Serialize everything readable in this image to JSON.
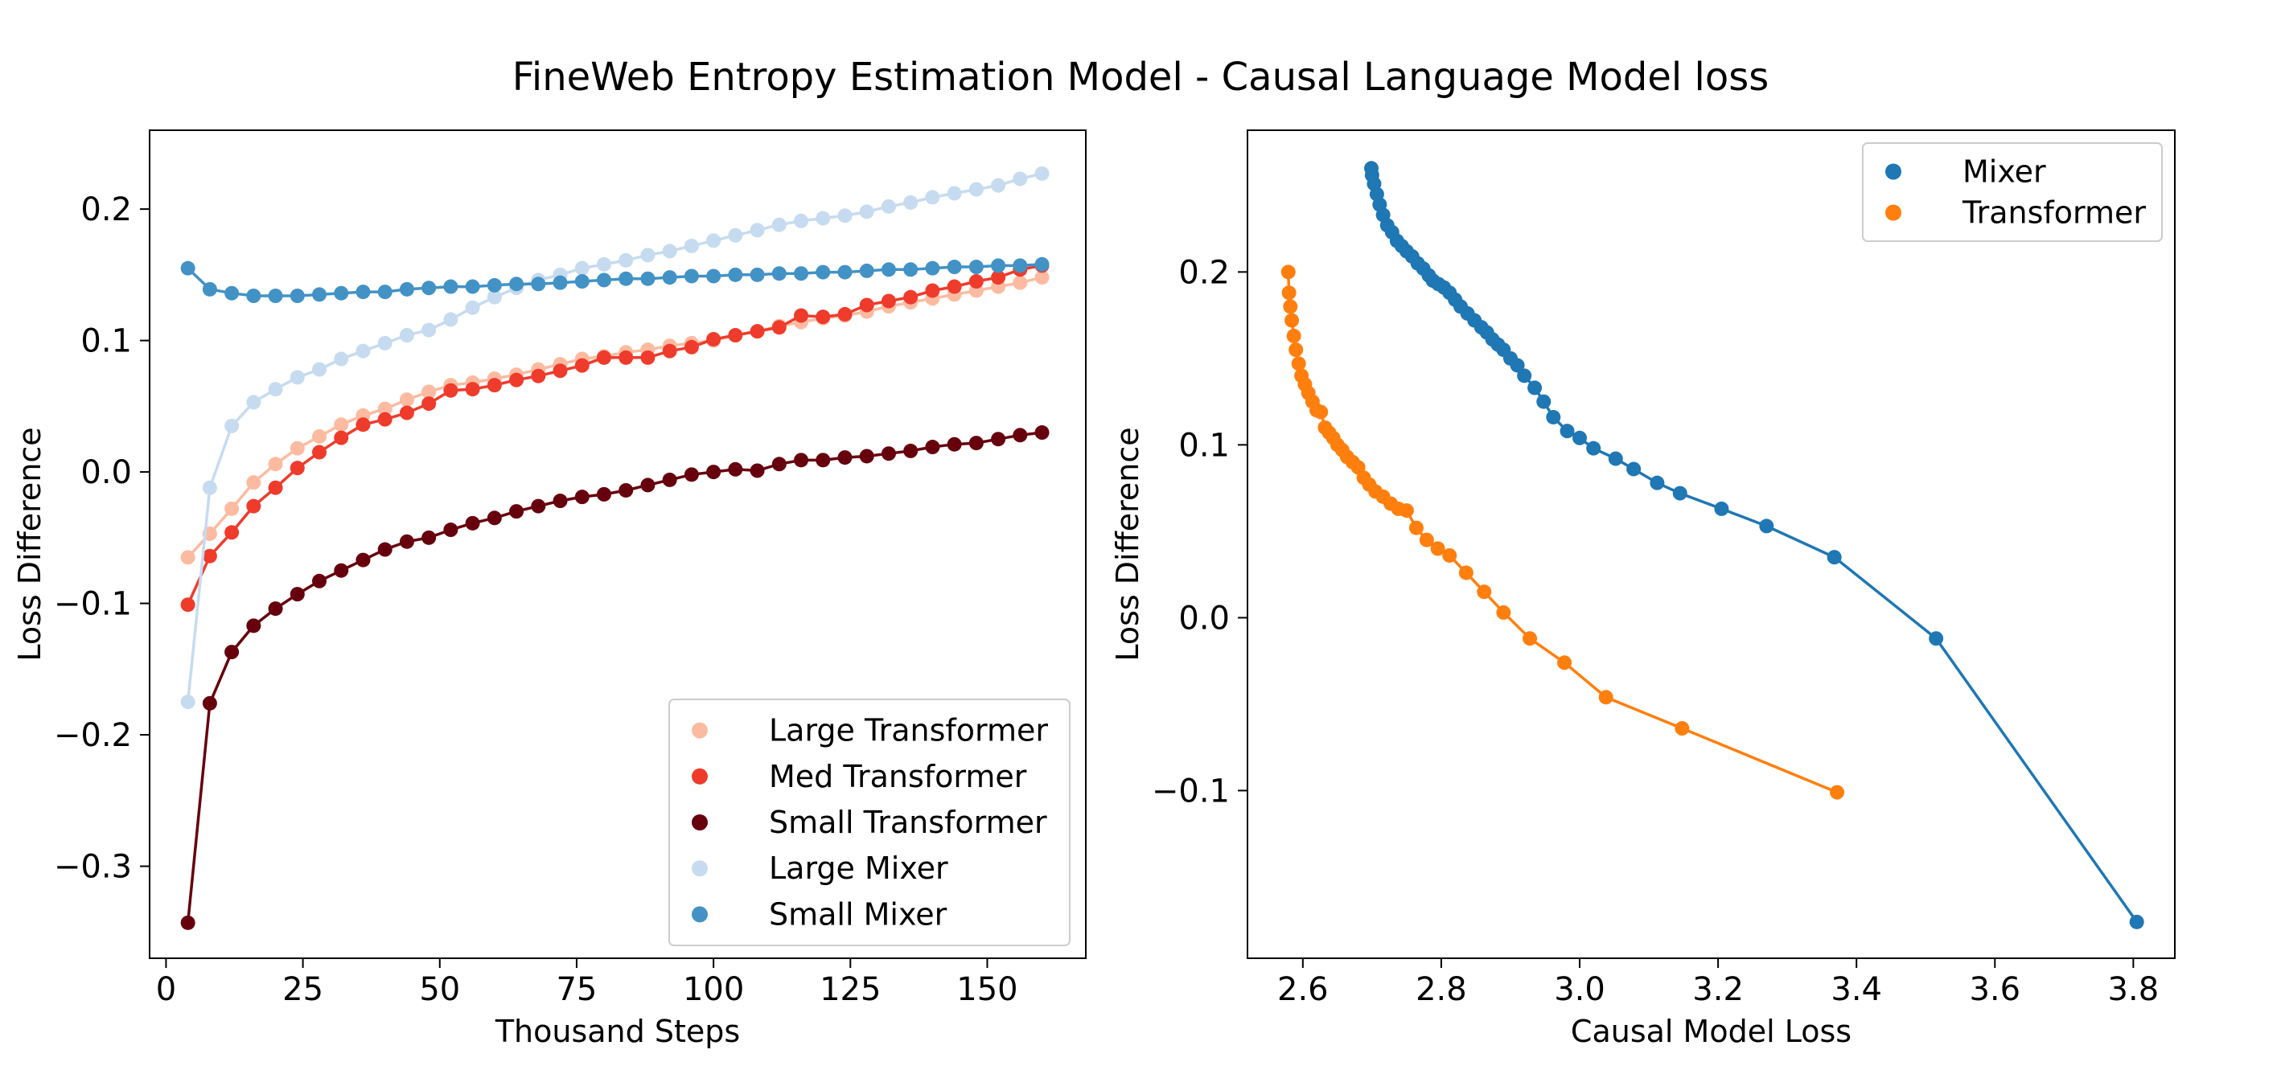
{
  "figure": {
    "title": "FineWeb Entropy Estimation Model - Causal Language Model loss"
  },
  "chart_data": [
    {
      "type": "line",
      "xlabel": "Thousand Steps",
      "ylabel": "Loss Difference",
      "xlim": [
        -3,
        168
      ],
      "ylim": [
        -0.37,
        0.26
      ],
      "xticks": [
        0,
        25,
        50,
        75,
        100,
        125,
        150
      ],
      "yticks": [
        -0.3,
        -0.2,
        -0.1,
        0.0,
        0.1,
        0.2
      ],
      "xtick_labels": [
        "0",
        "25",
        "50",
        "75",
        "100",
        "125",
        "150"
      ],
      "ytick_labels": [
        "−0.3",
        "−0.2",
        "−0.1",
        "0.0",
        "0.1",
        "0.2"
      ],
      "grid": false,
      "legend_position": "lower-right",
      "x": [
        4,
        8,
        12,
        16,
        20,
        24,
        28,
        32,
        36,
        40,
        44,
        48,
        52,
        56,
        60,
        64,
        68,
        72,
        76,
        80,
        84,
        88,
        92,
        96,
        100,
        104,
        108,
        112,
        116,
        120,
        124,
        128,
        132,
        136,
        140,
        144,
        148,
        152,
        156,
        160
      ],
      "series": [
        {
          "name": "Large Transformer",
          "color": "#fcbba1",
          "values": [
            -0.065,
            -0.047,
            -0.028,
            -0.008,
            0.006,
            0.018,
            0.027,
            0.036,
            0.043,
            0.048,
            0.055,
            0.061,
            0.066,
            0.068,
            0.071,
            0.074,
            0.078,
            0.082,
            0.086,
            0.088,
            0.091,
            0.093,
            0.096,
            0.098,
            0.1,
            0.104,
            0.107,
            0.111,
            0.114,
            0.117,
            0.119,
            0.122,
            0.126,
            0.129,
            0.132,
            0.135,
            0.138,
            0.141,
            0.144,
            0.148
          ]
        },
        {
          "name": "Med Transformer",
          "color": "#ef3b2c",
          "values": [
            -0.101,
            -0.064,
            -0.046,
            -0.026,
            -0.012,
            0.003,
            0.015,
            0.026,
            0.036,
            0.04,
            0.045,
            0.052,
            0.062,
            0.063,
            0.066,
            0.07,
            0.073,
            0.077,
            0.081,
            0.087,
            0.087,
            0.087,
            0.092,
            0.095,
            0.101,
            0.104,
            0.107,
            0.11,
            0.119,
            0.118,
            0.12,
            0.127,
            0.13,
            0.133,
            0.138,
            0.141,
            0.145,
            0.148,
            0.154,
            0.157
          ]
        },
        {
          "name": "Small Transformer",
          "color": "#67000d",
          "values": [
            -0.343,
            -0.176,
            -0.137,
            -0.117,
            -0.104,
            -0.093,
            -0.083,
            -0.075,
            -0.067,
            -0.059,
            -0.053,
            -0.05,
            -0.044,
            -0.039,
            -0.035,
            -0.03,
            -0.026,
            -0.022,
            -0.019,
            -0.017,
            -0.014,
            -0.01,
            -0.006,
            -0.002,
            0.0,
            0.002,
            0.001,
            0.006,
            0.009,
            0.009,
            0.011,
            0.012,
            0.014,
            0.016,
            0.019,
            0.021,
            0.022,
            0.025,
            0.028,
            0.03
          ]
        },
        {
          "name": "Large Mixer",
          "color": "#c6dbef",
          "values": [
            -0.175,
            -0.012,
            0.035,
            0.053,
            0.063,
            0.072,
            0.078,
            0.086,
            0.092,
            0.098,
            0.104,
            0.108,
            0.116,
            0.125,
            0.133,
            0.14,
            0.146,
            0.15,
            0.155,
            0.158,
            0.161,
            0.165,
            0.168,
            0.172,
            0.176,
            0.18,
            0.184,
            0.188,
            0.191,
            0.193,
            0.195,
            0.198,
            0.202,
            0.205,
            0.209,
            0.212,
            0.215,
            0.218,
            0.223,
            0.227
          ]
        },
        {
          "name": "Small Mixer",
          "color": "#4292c6",
          "values": [
            0.155,
            0.139,
            0.136,
            0.134,
            0.134,
            0.134,
            0.135,
            0.136,
            0.137,
            0.137,
            0.139,
            0.14,
            0.141,
            0.141,
            0.142,
            0.143,
            0.143,
            0.144,
            0.145,
            0.146,
            0.147,
            0.147,
            0.148,
            0.149,
            0.149,
            0.15,
            0.15,
            0.151,
            0.151,
            0.152,
            0.152,
            0.153,
            0.154,
            0.154,
            0.155,
            0.156,
            0.156,
            0.157,
            0.157,
            0.158
          ]
        }
      ]
    },
    {
      "type": "line",
      "xlabel": "Causal Model Loss",
      "ylabel": "Loss Difference",
      "xlim": [
        2.52,
        3.86
      ],
      "ylim": [
        -0.197,
        0.282
      ],
      "xticks": [
        2.6,
        2.8,
        3.0,
        3.2,
        3.4,
        3.6,
        3.8
      ],
      "yticks": [
        -0.1,
        0.0,
        0.1,
        0.2
      ],
      "xtick_labels": [
        "2.6",
        "2.8",
        "3.0",
        "3.2",
        "3.4",
        "3.6",
        "3.8"
      ],
      "ytick_labels": [
        "−0.1",
        "0.0",
        "0.1",
        "0.2"
      ],
      "grid": false,
      "legend_position": "upper-right",
      "series": [
        {
          "name": "Mixer",
          "color": "#1f77b4",
          "x": [
            3.805,
            3.515,
            3.368,
            3.27,
            3.205,
            3.145,
            3.112,
            3.078,
            3.052,
            3.02,
            3.0,
            2.982,
            2.962,
            2.948,
            2.935,
            2.92,
            2.91,
            2.9,
            2.89,
            2.882,
            2.874,
            2.866,
            2.858,
            2.848,
            2.838,
            2.828,
            2.82,
            2.812,
            2.804,
            2.796,
            2.788,
            2.782,
            2.774,
            2.766,
            2.758,
            2.75,
            2.743,
            2.736,
            2.729,
            2.722,
            2.716,
            2.711,
            2.707,
            2.703,
            2.7,
            2.699
          ],
          "y": [
            -0.176,
            -0.012,
            0.035,
            0.053,
            0.063,
            0.072,
            0.078,
            0.086,
            0.092,
            0.098,
            0.104,
            0.108,
            0.116,
            0.125,
            0.133,
            0.14,
            0.146,
            0.15,
            0.155,
            0.158,
            0.161,
            0.165,
            0.168,
            0.172,
            0.176,
            0.18,
            0.184,
            0.188,
            0.191,
            0.193,
            0.195,
            0.198,
            0.202,
            0.205,
            0.209,
            0.212,
            0.215,
            0.218,
            0.223,
            0.227,
            0.233,
            0.239,
            0.245,
            0.251,
            0.256,
            0.26
          ]
        },
        {
          "name": "Transformer",
          "color": "#ff7f0e",
          "x": [
            3.372,
            3.148,
            3.038,
            2.978,
            2.928,
            2.89,
            2.862,
            2.836,
            2.812,
            2.795,
            2.779,
            2.764,
            2.75,
            2.738,
            2.727,
            2.716,
            2.705,
            2.696,
            2.688,
            2.68,
            2.672,
            2.664,
            2.657,
            2.65,
            2.644,
            2.638,
            2.632,
            2.626,
            2.62,
            2.614,
            2.608,
            2.603,
            2.598,
            2.594,
            2.59,
            2.587,
            2.584,
            2.582,
            2.58,
            2.579
          ],
          "y": [
            -0.101,
            -0.064,
            -0.046,
            -0.026,
            -0.012,
            0.003,
            0.015,
            0.026,
            0.036,
            0.04,
            0.045,
            0.052,
            0.062,
            0.063,
            0.066,
            0.07,
            0.073,
            0.077,
            0.081,
            0.087,
            0.09,
            0.093,
            0.097,
            0.1,
            0.104,
            0.107,
            0.11,
            0.119,
            0.12,
            0.125,
            0.13,
            0.135,
            0.14,
            0.147,
            0.155,
            0.163,
            0.172,
            0.18,
            0.188,
            0.2
          ]
        }
      ]
    }
  ]
}
